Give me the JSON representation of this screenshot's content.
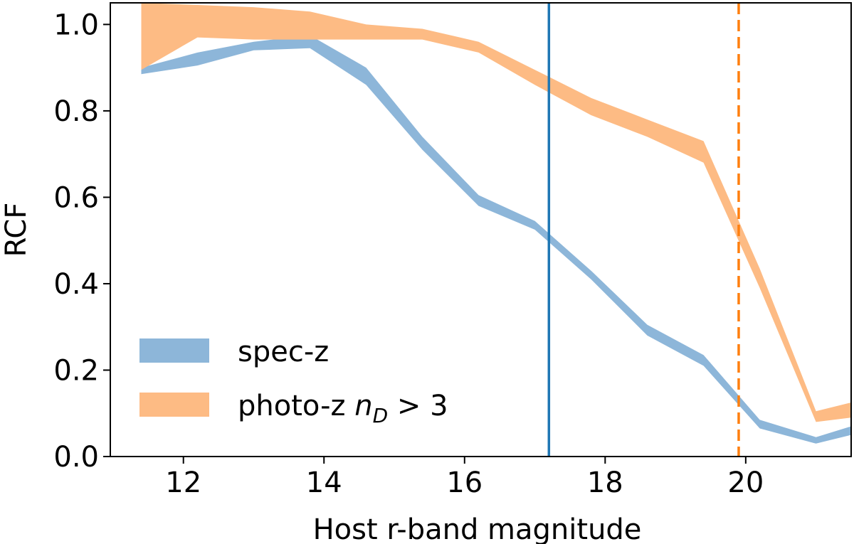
{
  "chart_data": {
    "type": "area",
    "xlabel": "Host r-band magnitude",
    "ylabel": "RCF",
    "xlim": [
      10.96,
      21.5
    ],
    "ylim": [
      0.0,
      1.05
    ],
    "xticks": [
      12,
      14,
      16,
      18,
      20
    ],
    "yticks": [
      0.0,
      0.2,
      0.4,
      0.6,
      0.8,
      1.0
    ],
    "xtick_labels": [
      "12",
      "14",
      "16",
      "18",
      "20"
    ],
    "ytick_labels": [
      "0.0",
      "0.2",
      "0.4",
      "0.6",
      "0.8",
      "1.0"
    ],
    "grid": false,
    "legend_position": "lower-left",
    "series": [
      {
        "name": "spec-z",
        "color": "#8db6d9",
        "x": [
          11.4,
          12.2,
          13.0,
          13.8,
          14.6,
          15.4,
          16.2,
          17.0,
          17.8,
          18.6,
          19.4,
          20.2,
          21.0,
          21.5
        ],
        "lower": [
          0.885,
          0.905,
          0.94,
          0.945,
          0.86,
          0.71,
          0.58,
          0.525,
          0.41,
          0.28,
          0.21,
          0.065,
          0.03,
          0.05
        ],
        "upper": [
          0.9,
          0.935,
          0.96,
          0.975,
          0.9,
          0.74,
          0.605,
          0.545,
          0.43,
          0.305,
          0.235,
          0.085,
          0.045,
          0.07
        ]
      },
      {
        "name": "photo-z",
        "name_subscript_label": "n",
        "name_subscript": "D",
        "name_suffix": " > 3",
        "color": "#fdbb84",
        "x": [
          11.4,
          12.2,
          13.0,
          13.8,
          14.6,
          15.4,
          16.2,
          17.0,
          17.8,
          18.6,
          19.4,
          20.2,
          21.0,
          21.5
        ],
        "lower": [
          0.895,
          0.97,
          0.965,
          0.965,
          0.965,
          0.965,
          0.935,
          0.86,
          0.79,
          0.74,
          0.68,
          0.39,
          0.08,
          0.09
        ],
        "upper": [
          1.05,
          1.045,
          1.04,
          1.03,
          1.0,
          0.99,
          0.96,
          0.895,
          0.83,
          0.78,
          0.73,
          0.435,
          0.105,
          0.125
        ]
      }
    ],
    "overlap_color": "#b88c6a",
    "vlines": [
      {
        "x": 17.2,
        "color": "#1f77b4",
        "style": "solid"
      },
      {
        "x": 19.9,
        "color": "#ff7f0e",
        "style": "dashed"
      }
    ],
    "legend": {
      "entries": [
        {
          "text": "spec-z",
          "color": "#8db6d9"
        },
        {
          "text_prefix": "photo-z ",
          "math_var": "n",
          "math_sub": "D",
          "text_suffix": " > 3",
          "color": "#fdbb84"
        }
      ]
    }
  }
}
